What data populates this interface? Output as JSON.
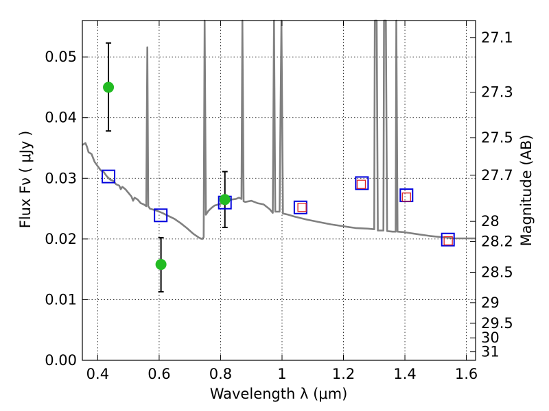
{
  "chart_data": {
    "type": "scatter",
    "xlabel": "Wavelength  λ (μm)",
    "ylabel": "Flux  Fν ( μJy )",
    "ylabel_right": "Magnitude (AB)",
    "xlim": [
      0.35,
      1.63
    ],
    "ylim": [
      0.0,
      0.056
    ],
    "grid": true,
    "x_ticks": [
      {
        "value": 0.4,
        "label": "0.4"
      },
      {
        "value": 0.6,
        "label": "0.6"
      },
      {
        "value": 0.8,
        "label": "0.8"
      },
      {
        "value": 1.0,
        "label": "1"
      },
      {
        "value": 1.2,
        "label": "1.2"
      },
      {
        "value": 1.4,
        "label": "1.4"
      },
      {
        "value": 1.6,
        "label": "1.6"
      }
    ],
    "y_ticks": [
      {
        "value": 0.0,
        "label": "0.00"
      },
      {
        "value": 0.01,
        "label": "0.01"
      },
      {
        "value": 0.02,
        "label": "0.02"
      },
      {
        "value": 0.03,
        "label": "0.03"
      },
      {
        "value": 0.04,
        "label": "0.04"
      },
      {
        "value": 0.05,
        "label": "0.05"
      }
    ],
    "right_ticks": [
      {
        "flux": 0.0532,
        "label": "27.1"
      },
      {
        "flux": 0.0442,
        "label": "27.3"
      },
      {
        "flux": 0.0367,
        "label": "27.5"
      },
      {
        "flux": 0.0305,
        "label": "27.7"
      },
      {
        "flux": 0.0229,
        "label": "28"
      },
      {
        "flux": 0.0196,
        "label": "28.2"
      },
      {
        "flux": 0.0145,
        "label": "28.5"
      },
      {
        "flux": 0.0095,
        "label": "29"
      },
      {
        "flux": 0.0061,
        "label": "29.5"
      },
      {
        "flux": 0.0037,
        "label": "30"
      },
      {
        "flux": 0.0014,
        "label": "31"
      }
    ],
    "series": [
      {
        "kind": "model_spectrum",
        "color": "#808080",
        "points": [
          [
            0.35,
            0.0355
          ],
          [
            0.36,
            0.0358
          ],
          [
            0.365,
            0.0352
          ],
          [
            0.37,
            0.0343
          ],
          [
            0.38,
            0.034
          ],
          [
            0.39,
            0.0327
          ],
          [
            0.4,
            0.032
          ],
          [
            0.41,
            0.0313
          ],
          [
            0.42,
            0.031
          ],
          [
            0.43,
            0.0303
          ],
          [
            0.44,
            0.0298
          ],
          [
            0.45,
            0.0296
          ],
          [
            0.46,
            0.029
          ],
          [
            0.47,
            0.0288
          ],
          [
            0.475,
            0.0282
          ],
          [
            0.48,
            0.0286
          ],
          [
            0.49,
            0.0282
          ],
          [
            0.5,
            0.0276
          ],
          [
            0.51,
            0.027
          ],
          [
            0.515,
            0.0263
          ],
          [
            0.52,
            0.0268
          ],
          [
            0.53,
            0.0265
          ],
          [
            0.54,
            0.0259
          ],
          [
            0.55,
            0.0257
          ],
          [
            0.558,
            0.0254
          ],
          [
            0.5615,
            0.0516
          ],
          [
            0.5645,
            0.0254
          ],
          [
            0.57,
            0.025
          ],
          [
            0.59,
            0.0247
          ],
          [
            0.61,
            0.0243
          ],
          [
            0.63,
            0.0238
          ],
          [
            0.65,
            0.0233
          ],
          [
            0.67,
            0.0226
          ],
          [
            0.69,
            0.0218
          ],
          [
            0.71,
            0.0209
          ],
          [
            0.73,
            0.0202
          ],
          [
            0.74,
            0.02
          ],
          [
            0.745,
            0.0203
          ],
          [
            0.748,
            0.056
          ],
          [
            0.752,
            0.024
          ],
          [
            0.76,
            0.0246
          ],
          [
            0.77,
            0.0251
          ],
          [
            0.78,
            0.0255
          ],
          [
            0.8,
            0.0258
          ],
          [
            0.82,
            0.0262
          ],
          [
            0.835,
            0.0265
          ],
          [
            0.85,
            0.0266
          ],
          [
            0.86,
            0.0268
          ],
          [
            0.868,
            0.0266
          ],
          [
            0.871,
            0.056
          ],
          [
            0.875,
            0.0262
          ],
          [
            0.88,
            0.0261
          ],
          [
            0.9,
            0.0263
          ],
          [
            0.92,
            0.0259
          ],
          [
            0.94,
            0.0257
          ],
          [
            0.96,
            0.0249
          ],
          [
            0.97,
            0.0243
          ],
          [
            0.974,
            0.056
          ],
          [
            0.978,
            0.0245
          ],
          [
            0.985,
            0.0245
          ],
          [
            0.992,
            0.0245
          ],
          [
            0.998,
            0.056
          ],
          [
            1.003,
            0.0242
          ],
          [
            1.02,
            0.024
          ],
          [
            1.04,
            0.0237
          ],
          [
            1.08,
            0.0232
          ],
          [
            1.12,
            0.0228
          ],
          [
            1.16,
            0.0224
          ],
          [
            1.2,
            0.0221
          ],
          [
            1.24,
            0.0218
          ],
          [
            1.28,
            0.0217
          ],
          [
            1.3,
            0.0216
          ],
          [
            1.302,
            0.056
          ],
          [
            1.308,
            0.056
          ],
          [
            1.312,
            0.0214
          ],
          [
            1.33,
            0.0214
          ],
          [
            1.332,
            0.056
          ],
          [
            1.338,
            0.056
          ],
          [
            1.342,
            0.0213
          ],
          [
            1.36,
            0.0212
          ],
          [
            1.37,
            0.0212
          ],
          [
            1.372,
            0.056
          ],
          [
            1.376,
            0.0212
          ],
          [
            1.4,
            0.0211
          ],
          [
            1.44,
            0.0208
          ],
          [
            1.48,
            0.0205
          ],
          [
            1.52,
            0.0203
          ],
          [
            1.56,
            0.0201
          ],
          [
            1.6,
            0.0201
          ],
          [
            1.63,
            0.0201
          ]
        ]
      },
      {
        "kind": "model_photometry",
        "marker": "open-square",
        "color": "#0000dd",
        "points": [
          [
            0.435,
            0.0303
          ],
          [
            0.605,
            0.0239
          ],
          [
            0.814,
            0.026
          ],
          [
            1.06,
            0.0252
          ],
          [
            1.26,
            0.0292
          ],
          [
            1.405,
            0.0272
          ],
          [
            1.54,
            0.0199
          ]
        ]
      },
      {
        "kind": "observed_detections",
        "marker": "filled-circle",
        "color": "#22bb22",
        "points": [
          {
            "x": 0.435,
            "y": 0.045,
            "ylow": 0.0378,
            "yhigh": 0.0523
          },
          {
            "x": 0.606,
            "y": 0.0158,
            "ylow": 0.0113,
            "yhigh": 0.0202
          },
          {
            "x": 0.814,
            "y": 0.0265,
            "ylow": 0.0219,
            "yhigh": 0.0311
          }
        ]
      },
      {
        "kind": "observed_ir",
        "marker": "open-square",
        "color": "#dd2222",
        "points": [
          [
            1.065,
            0.0252
          ],
          [
            1.258,
            0.029
          ],
          [
            1.405,
            0.0269
          ],
          [
            1.541,
            0.0197
          ]
        ]
      }
    ]
  }
}
